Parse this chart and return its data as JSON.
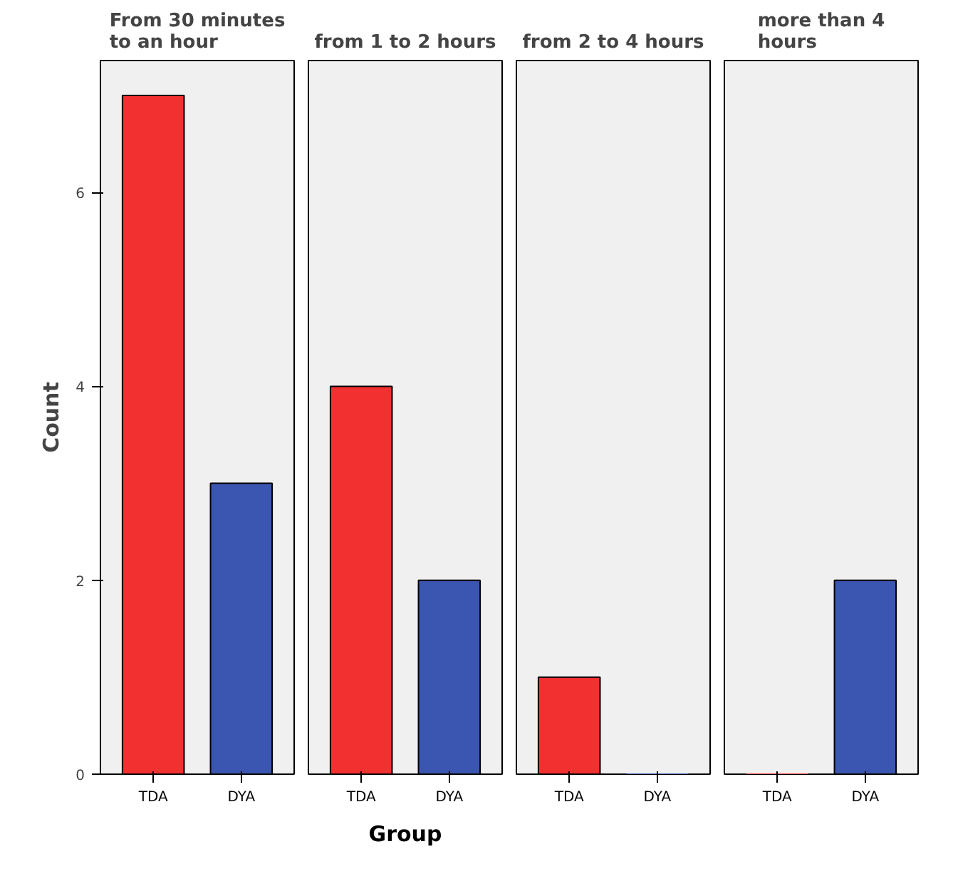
{
  "chart_data": [
    {
      "type": "bar",
      "title": "From 30 minutes\nto an hour",
      "ylabel": "Count",
      "categories": [
        "TDA",
        "DYA"
      ],
      "values": [
        7,
        3
      ],
      "colors": [
        "#f23030",
        "#3b56b0"
      ],
      "ylim": [
        0,
        7.36
      ],
      "yticks": [
        0,
        2,
        4,
        6
      ],
      "grid": false
    },
    {
      "type": "bar",
      "title": "from 1 to 2 hours",
      "xlabel": "Group",
      "categories": [
        "TDA",
        "DYA"
      ],
      "values": [
        4,
        2
      ],
      "colors": [
        "#f23030",
        "#3b56b0"
      ],
      "ylim": [
        0,
        7.36
      ],
      "yticks": [
        0,
        2,
        4,
        6
      ],
      "grid": false,
      "tick_labels": "x"
    },
    {
      "type": "bar",
      "title": "from 2 to 4 hours",
      "categories": [
        "TDA",
        "DYA"
      ],
      "values": [
        1,
        0
      ],
      "colors": [
        "#f23030",
        "#3b56b0"
      ],
      "ylim": [
        0,
        7.36
      ],
      "yticks": [
        0,
        2,
        4,
        6
      ],
      "grid": false,
      "tick_labels": "x"
    },
    {
      "type": "bar",
      "title": "more than 4\nhours",
      "categories": [
        "TDA",
        "DYA"
      ],
      "values": [
        0,
        2
      ],
      "colors": [
        "#f23030",
        "#3b56b0"
      ],
      "ylim": [
        0,
        7.36
      ],
      "yticks": [
        0,
        2,
        4,
        6
      ],
      "grid": false,
      "tick_labels": "x"
    }
  ]
}
